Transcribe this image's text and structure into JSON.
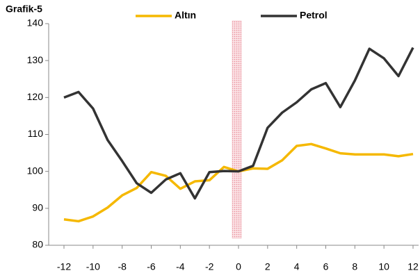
{
  "chart_data": {
    "type": "line",
    "title": "Grafik-5",
    "x": [
      -12,
      -11,
      -10,
      -9,
      -8,
      -7,
      -6,
      -5,
      -4,
      -3,
      -2,
      -1,
      0,
      1,
      2,
      3,
      4,
      5,
      6,
      7,
      8,
      9,
      10,
      11,
      12
    ],
    "series": [
      {
        "name": "Altın",
        "color": "#f5b800",
        "values": [
          87,
          86.5,
          87.8,
          90.2,
          93.5,
          95.5,
          99.8,
          98.8,
          95.3,
          97.3,
          97.6,
          101.2,
          100,
          100.8,
          100.7,
          103,
          106.9,
          107.4,
          106.2,
          104.9,
          104.6,
          104.6,
          104.6,
          104.1,
          104.7
        ]
      },
      {
        "name": "Petrol",
        "color": "#333333",
        "values": [
          120,
          121.5,
          117,
          108.5,
          102.8,
          96.8,
          94.2,
          97.8,
          99.5,
          92.7,
          99.8,
          100.1,
          100,
          101.5,
          111.8,
          115.9,
          118.7,
          122.2,
          123.9,
          117.4,
          124.6,
          133.2,
          130.6,
          125.8,
          133.5
        ]
      }
    ],
    "xlim": [
      -12,
      12
    ],
    "xticks": [
      -12,
      -10,
      -8,
      -6,
      -4,
      -2,
      0,
      2,
      4,
      6,
      8,
      10,
      12
    ],
    "ylim": [
      80,
      140
    ],
    "yticks": [
      80,
      90,
      100,
      110,
      120,
      130,
      140
    ],
    "grid": false
  }
}
